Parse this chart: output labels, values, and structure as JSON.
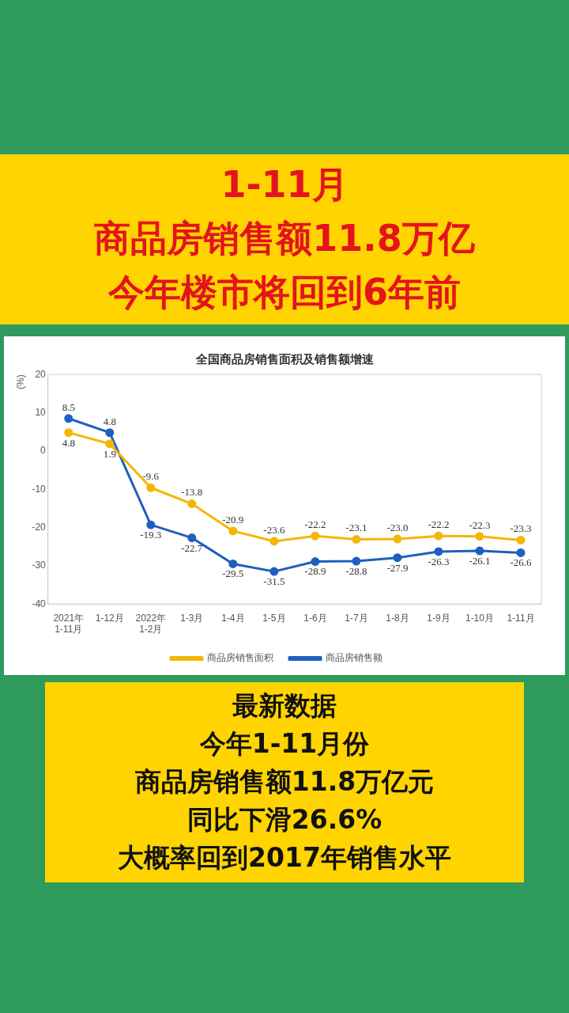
{
  "chart_data": {
    "type": "line",
    "title": "全国商品房销售面积及销售额增速",
    "ylabel": "(%)",
    "categories": [
      "2021年 1-11月",
      "1-12月",
      "2022年 1-2月",
      "1-3月",
      "1-4月",
      "1-5月",
      "1-6月",
      "1-7月",
      "1-8月",
      "1-9月",
      "1-10月",
      "1-11月"
    ],
    "series": [
      {
        "name": "商品房销售面积",
        "color": "#f2b705",
        "values": [
          4.8,
          1.9,
          -9.6,
          -13.8,
          -20.9,
          -23.6,
          -22.2,
          -23.1,
          -23.0,
          -22.2,
          -22.3,
          -23.3
        ],
        "value_labels": [
          "4.8",
          "1.9",
          "-9.6",
          "-13.8",
          "-20.9",
          "-23.6",
          "-22.2",
          "-23.1",
          "-23.0",
          "-22.2",
          "-22.3",
          "-23.3"
        ]
      },
      {
        "name": "商品房销售额",
        "color": "#1f5fbf",
        "values": [
          8.5,
          4.8,
          -19.3,
          -22.7,
          -29.5,
          -31.5,
          -28.9,
          -28.8,
          -27.9,
          -26.3,
          -26.1,
          -26.6
        ],
        "value_labels": [
          "8.5",
          "4.8",
          "-19.3",
          "-22.7",
          "-29.5",
          "-31.5",
          "-28.9",
          "-28.8",
          "-27.9",
          "-26.3",
          "-26.1",
          "-26.6"
        ]
      }
    ],
    "ylim": [
      -40,
      20
    ],
    "yticks": [
      -40,
      -30,
      -20,
      -10,
      0,
      10,
      20
    ],
    "grid": false,
    "legend": "bottom",
    "marker": "circle",
    "annotations": [
      "1-11月",
      "商品房销售额11.8万亿",
      "今年楼市将回到6年前",
      "最新数据",
      "今年1-11月份",
      "商品房销售额11.8万亿元",
      "同比下滑26.6%",
      "大概率回到2017年销售水平"
    ]
  }
}
